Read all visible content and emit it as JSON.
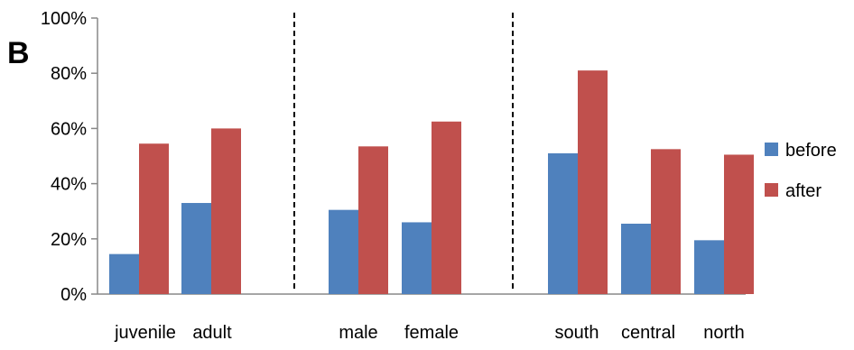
{
  "panel_letter": "B",
  "chart_data": {
    "type": "bar",
    "title": "",
    "xlabel": "",
    "ylabel": "",
    "ylim": [
      0,
      100
    ],
    "yticks": [
      "0%",
      "20%",
      "40%",
      "60%",
      "80%",
      "100%"
    ],
    "grid": false,
    "legend_position": "right",
    "categories": [
      "juvenile",
      "adult",
      "male",
      "female",
      "south",
      "central",
      "north"
    ],
    "groups": [
      {
        "categories": [
          0,
          1
        ]
      },
      {
        "categories": [
          2,
          3
        ]
      },
      {
        "categories": [
          4,
          5,
          6
        ]
      }
    ],
    "series": [
      {
        "name": "before",
        "color": "#4f81bd",
        "values": [
          14.5,
          33,
          30.5,
          26,
          51,
          25.5,
          19.5
        ]
      },
      {
        "name": "after",
        "color": "#c0504d",
        "values": [
          54.5,
          60,
          53.5,
          62.5,
          81,
          52.5,
          50.5
        ]
      }
    ]
  }
}
